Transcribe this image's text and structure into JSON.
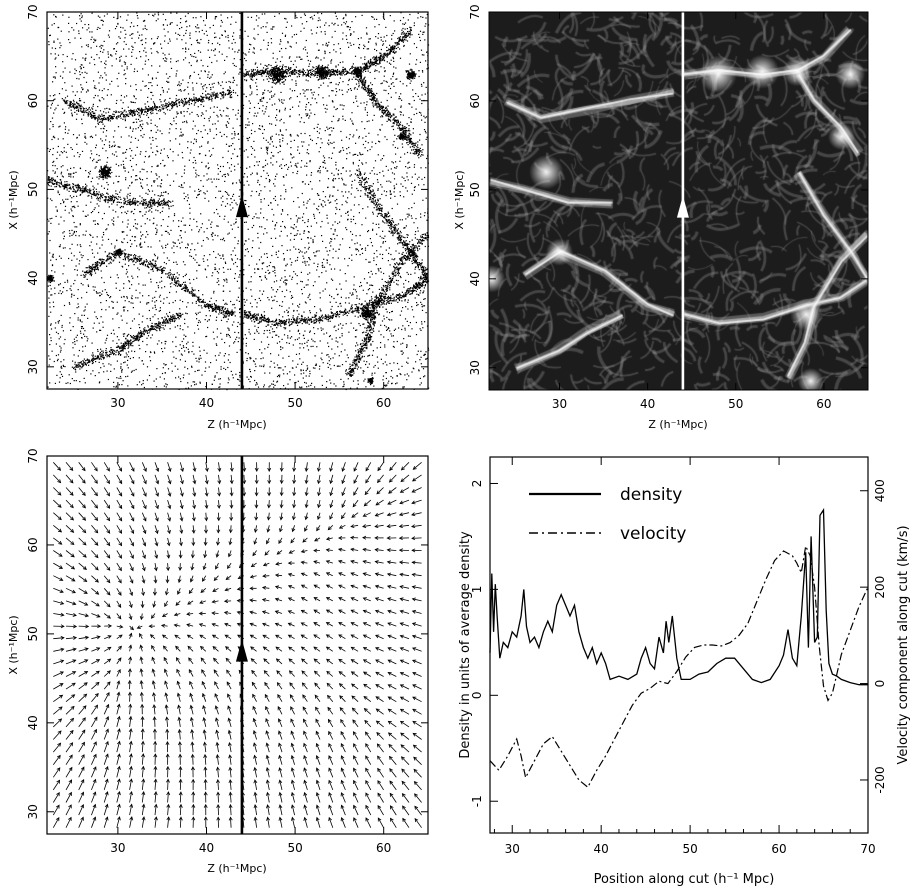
{
  "chart_data": [
    {
      "type": "scatter",
      "panel": "particles",
      "xlabel": "Z (h⁻¹Mpc)",
      "ylabel": "X (h⁻¹Mpc)",
      "xlim": [
        22,
        65
      ],
      "ylim": [
        27.5,
        70
      ],
      "xticks": [
        30,
        40,
        50,
        60
      ],
      "yticks": [
        30,
        40,
        50,
        60,
        70
      ],
      "cut_z": 44,
      "arrow_x": 48,
      "clusters": [
        {
          "z": 30,
          "x": 43,
          "r": 0.6
        },
        {
          "z": 28.5,
          "x": 52,
          "r": 1.2
        },
        {
          "z": 48,
          "x": 63,
          "r": 1.5
        },
        {
          "z": 53,
          "x": 63.3,
          "r": 1.2
        },
        {
          "z": 57,
          "x": 63.3,
          "r": 0.8
        },
        {
          "z": 62,
          "x": 56,
          "r": 0.6
        },
        {
          "z": 63,
          "x": 63,
          "r": 0.8
        },
        {
          "z": 58.5,
          "x": 28.5,
          "r": 0.5
        },
        {
          "z": 58,
          "x": 36,
          "r": 1.0
        },
        {
          "z": 22.3,
          "x": 40,
          "r": 0.6
        }
      ],
      "filaments": [
        [
          [
            22,
            51
          ],
          [
            26,
            50
          ],
          [
            31,
            48.5
          ],
          [
            36,
            48.5
          ]
        ],
        [
          [
            26,
            40.5
          ],
          [
            30,
            43
          ],
          [
            35,
            41
          ],
          [
            40,
            37
          ],
          [
            43,
            36
          ]
        ],
        [
          [
            44,
            36
          ],
          [
            48,
            35
          ],
          [
            53,
            35.5
          ],
          [
            58,
            37
          ],
          [
            62,
            38
          ],
          [
            65,
            40
          ]
        ],
        [
          [
            44,
            63
          ],
          [
            48,
            63.5
          ],
          [
            53,
            63
          ],
          [
            57,
            63.5
          ],
          [
            60,
            65
          ],
          [
            63,
            68
          ]
        ],
        [
          [
            57,
            63
          ],
          [
            59,
            60
          ],
          [
            62,
            57
          ],
          [
            64,
            54
          ]
        ],
        [
          [
            56,
            29
          ],
          [
            58,
            33
          ],
          [
            59,
            37
          ],
          [
            62,
            42
          ],
          [
            65,
            45
          ]
        ],
        [
          [
            24,
            60
          ],
          [
            28,
            58
          ],
          [
            33,
            59
          ],
          [
            38,
            60
          ],
          [
            43,
            61
          ]
        ],
        [
          [
            25,
            30
          ],
          [
            30,
            32
          ],
          [
            33,
            34
          ],
          [
            37,
            36
          ]
        ],
        [
          [
            57,
            52
          ],
          [
            60,
            47
          ],
          [
            63,
            43
          ],
          [
            65,
            40
          ]
        ]
      ]
    },
    {
      "type": "heatmap",
      "panel": "density-field",
      "xlabel": "Z (h⁻¹Mpc)",
      "ylabel": "X (h⁻¹Mpc)",
      "xlim": [
        22,
        65
      ],
      "ylim": [
        27.5,
        70
      ],
      "xticks": [
        30,
        40,
        50,
        60
      ],
      "yticks": [
        30,
        40,
        50,
        60,
        70
      ],
      "cut_z": 44,
      "arrow_x": 48,
      "colormap": [
        "#1c1c1c",
        "#ffffff"
      ]
    },
    {
      "type": "vector-field",
      "panel": "velocity-field",
      "xlabel": "Z (h⁻¹Mpc)",
      "ylabel": "X (h⁻¹Mpc)",
      "xlim": [
        22,
        65
      ],
      "ylim": [
        27.5,
        70
      ],
      "xticks": [
        30,
        40,
        50,
        60
      ],
      "yticks": [
        30,
        40,
        50,
        60,
        70
      ],
      "cut_z": 44,
      "arrow_x": 48,
      "attractors": [
        {
          "z": 28,
          "x": 51.5,
          "s": 1.0
        },
        {
          "z": 29,
          "x": 43.5,
          "s": 0.9
        },
        {
          "z": 57,
          "x": 63.5,
          "s": 0.7
        },
        {
          "z": 63,
          "x": 67,
          "s": 0.5
        },
        {
          "z": 60,
          "x": 38,
          "s": 0.5
        }
      ],
      "repellers": [
        {
          "z": 50,
          "x": 53,
          "s": 0.8
        },
        {
          "z": 36,
          "x": 33,
          "s": 0.5
        }
      ]
    },
    {
      "type": "line",
      "panel": "profile-along-cut",
      "xlabel": "Position along cut (h⁻¹  Mpc)",
      "ylabel": "Density in units of average density",
      "y2label": "Velocity component along cut (km/s)",
      "xlim": [
        27.5,
        70
      ],
      "ylim": [
        -1.3,
        2.25
      ],
      "y2lim": [
        -310,
        470
      ],
      "xticks": [
        30,
        40,
        50,
        60,
        70
      ],
      "yticks": [
        -1,
        0,
        1,
        2
      ],
      "y2ticks": [
        -200,
        0,
        200,
        400
      ],
      "legend_position": "top-left",
      "series": [
        {
          "name": "density",
          "axis": "left",
          "style": "solid",
          "x": [
            27.5,
            27.7,
            27.9,
            28.1,
            28.3,
            28.6,
            29.0,
            29.5,
            30.0,
            30.5,
            31.0,
            31.3,
            31.6,
            32.0,
            32.5,
            33.0,
            33.5,
            34.0,
            34.5,
            35.0,
            35.5,
            36.0,
            36.5,
            37.0,
            37.5,
            38.0,
            38.5,
            39.0,
            39.5,
            40.0,
            40.5,
            41.0,
            42.0,
            43.0,
            44.0,
            44.5,
            45.0,
            45.5,
            46.0,
            46.5,
            47.0,
            47.3,
            47.6,
            48.0,
            48.5,
            49.0,
            50.0,
            51.0,
            52.0,
            53.0,
            54.0,
            55.0,
            56.0,
            57.0,
            58.0,
            59.0,
            60.0,
            60.5,
            61.0,
            61.5,
            62.0,
            62.5,
            63.0,
            63.3,
            63.6,
            64.0,
            64.3,
            64.6,
            65.0,
            65.3,
            65.6,
            66.0,
            66.5,
            67.0,
            68.0,
            69.0,
            70.0
          ],
          "values": [
            0.4,
            1.15,
            0.6,
            1.05,
            0.75,
            0.35,
            0.5,
            0.45,
            0.6,
            0.55,
            0.75,
            1.0,
            0.65,
            0.5,
            0.55,
            0.45,
            0.6,
            0.7,
            0.6,
            0.85,
            0.95,
            0.85,
            0.75,
            0.85,
            0.6,
            0.45,
            0.35,
            0.45,
            0.3,
            0.4,
            0.3,
            0.15,
            0.18,
            0.15,
            0.2,
            0.35,
            0.45,
            0.3,
            0.25,
            0.55,
            0.4,
            0.7,
            0.5,
            0.75,
            0.35,
            0.15,
            0.15,
            0.2,
            0.22,
            0.3,
            0.35,
            0.35,
            0.25,
            0.15,
            0.12,
            0.15,
            0.28,
            0.38,
            0.62,
            0.35,
            0.28,
            0.75,
            1.35,
            0.45,
            1.5,
            0.5,
            0.55,
            1.7,
            1.75,
            0.8,
            0.3,
            0.2,
            0.18,
            0.15,
            0.12,
            0.1,
            0.1
          ]
        },
        {
          "name": "velocity",
          "axis": "right",
          "style": "dash-dot",
          "x": [
            27.5,
            28.5,
            29.5,
            30.5,
            31.0,
            31.5,
            32.5,
            33.5,
            34.5,
            35.5,
            36.5,
            37.5,
            38.5,
            39.5,
            40.5,
            41.5,
            42.5,
            43.5,
            44.5,
            45.5,
            46.5,
            47.5,
            48.5,
            49.5,
            50.5,
            51.5,
            52.5,
            53.5,
            54.5,
            55.5,
            56.5,
            57.5,
            58.5,
            59.5,
            60.5,
            61.0,
            61.5,
            62.0,
            62.5,
            63.0,
            63.5,
            64.0,
            64.5,
            65.0,
            65.5,
            66.0,
            66.5,
            67.0,
            68.0,
            69.0,
            70.0
          ],
          "values": [
            -160,
            -180,
            -150,
            -115,
            -150,
            -195,
            -160,
            -125,
            -110,
            -140,
            -170,
            -200,
            -215,
            -180,
            -150,
            -115,
            -80,
            -45,
            -20,
            -10,
            5,
            0,
            25,
            55,
            75,
            80,
            80,
            78,
            85,
            100,
            125,
            170,
            215,
            255,
            275,
            270,
            265,
            250,
            230,
            285,
            265,
            200,
            80,
            -5,
            -35,
            -20,
            20,
            60,
            110,
            160,
            200
          ]
        }
      ]
    }
  ]
}
